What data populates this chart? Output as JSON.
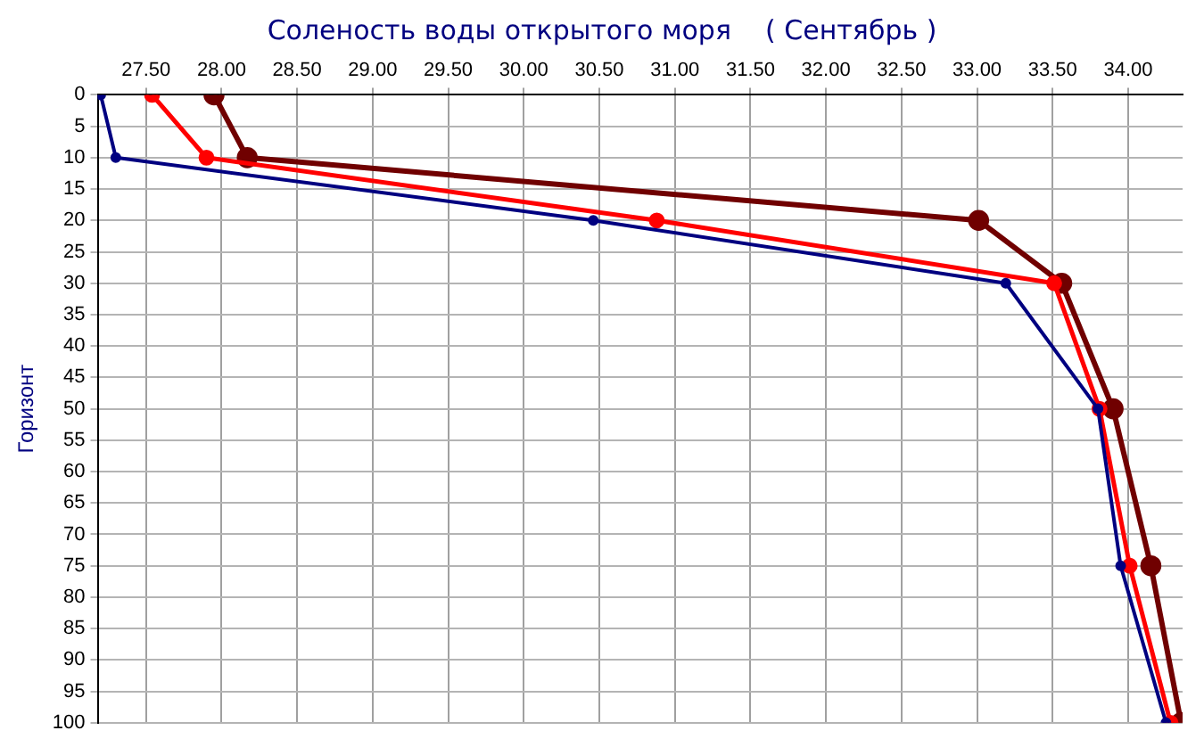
{
  "chart_data": {
    "type": "line",
    "title": "Соленость воды открытого моря    ( Сентябрь )",
    "ylabel": "Горизонт",
    "xlim": [
      27.18,
      34.36
    ],
    "xticks": [
      {
        "value": 27.5,
        "label": "27.50"
      },
      {
        "value": 28,
        "label": "28.00"
      },
      {
        "value": 28.5,
        "label": "28.50"
      },
      {
        "value": 29,
        "label": "29.00"
      },
      {
        "value": 29.5,
        "label": "29.50"
      },
      {
        "value": 30,
        "label": "30.00"
      },
      {
        "value": 30.5,
        "label": "30.50"
      },
      {
        "value": 31,
        "label": "31.00"
      },
      {
        "value": 31.5,
        "label": "31.50"
      },
      {
        "value": 32,
        "label": "32.00"
      },
      {
        "value": 32.5,
        "label": "32.50"
      },
      {
        "value": 33,
        "label": "33.00"
      },
      {
        "value": 33.5,
        "label": "33.50"
      },
      {
        "value": 34,
        "label": "34.00"
      }
    ],
    "ylim": [
      100,
      0
    ],
    "yticks": [
      0,
      5,
      10,
      15,
      20,
      25,
      30,
      35,
      40,
      45,
      50,
      55,
      60,
      65,
      70,
      75,
      80,
      85,
      90,
      95,
      100
    ],
    "grid": true,
    "legend": false,
    "marker": "circle",
    "line_style": "solid",
    "series": [
      {
        "color": "#000080",
        "x": [
          27.2,
          27.3,
          30.46,
          33.19,
          33.8,
          33.95,
          34.25
        ],
        "values": [
          0,
          10,
          20,
          30,
          50,
          75,
          100
        ]
      },
      {
        "color": "#ff0000",
        "x": [
          27.54,
          27.9,
          30.88,
          33.51,
          33.81,
          34.01,
          34.28
        ],
        "values": [
          0,
          10,
          20,
          30,
          50,
          75,
          100
        ]
      },
      {
        "color": "#700000",
        "x": [
          27.95,
          28.17,
          33.01,
          33.56,
          33.9,
          34.15,
          34.35
        ],
        "values": [
          0,
          10,
          20,
          30,
          50,
          75,
          100
        ]
      }
    ]
  }
}
